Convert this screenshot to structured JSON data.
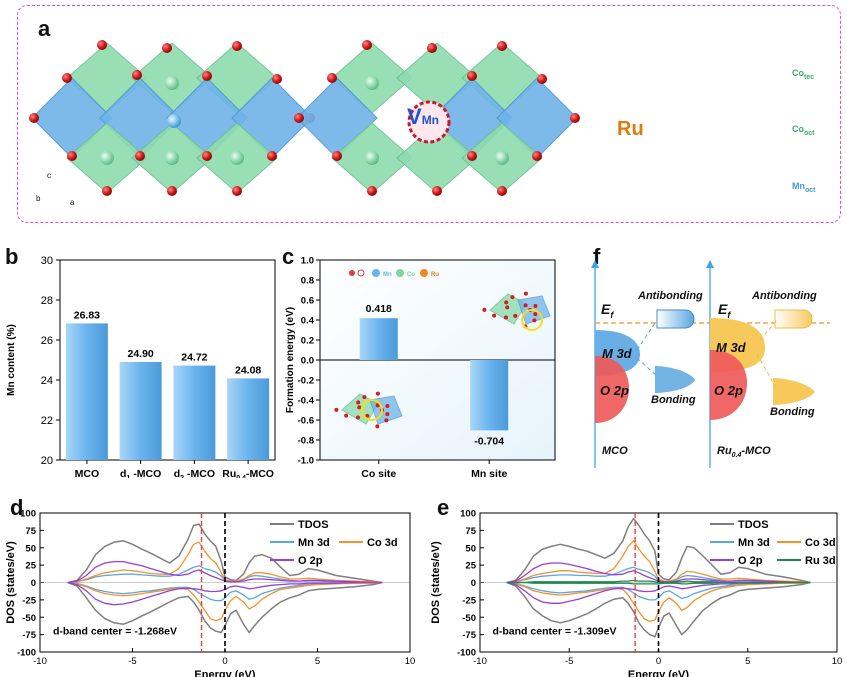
{
  "panel_a": {
    "label": "a",
    "vacancy_label": "V",
    "vacancy_sub": "Mn",
    "dopant_label": "Ru",
    "axes": {
      "c": "c",
      "b": "b",
      "a": "a"
    },
    "legend": [
      {
        "name": "Co",
        "sub": "tec",
        "color": "#5cc98a"
      },
      {
        "name": "Co",
        "sub": "oct",
        "color": "#5cc98a"
      },
      {
        "name": "Mn",
        "sub": "oct",
        "color": "#4aa3e0"
      }
    ],
    "colors": {
      "co_poly": "#88dba8",
      "mn_poly": "#6fb3e8",
      "oxygen": "#d81b1b",
      "ru_poly": "#f08a1c",
      "vacancy": "#d3122f"
    }
  },
  "chart_data": [
    {
      "id": "b",
      "type": "bar",
      "label": "b",
      "categories": [
        "MCO",
        "d1-MCO",
        "d2-MCO",
        "Ru0.4-MCO"
      ],
      "category_parts": [
        {
          "main": "MCO",
          "sub": "",
          "tail": ""
        },
        {
          "main": "d",
          "sub": "1",
          "tail": " -MCO"
        },
        {
          "main": "d",
          "sub": "2",
          "tail": " -MCO"
        },
        {
          "main": "Ru",
          "sub": "0.4",
          "tail": "-MCO"
        }
      ],
      "values": [
        26.83,
        24.9,
        24.72,
        24.08
      ],
      "value_labels": [
        "26.83",
        "24.90",
        "24.72",
        "24.08"
      ],
      "ylabel": "Mn content (%)",
      "ylim": [
        20,
        30
      ],
      "yticks": [
        20,
        22,
        24,
        26,
        28,
        30
      ],
      "color": "#6ab4ee"
    },
    {
      "id": "c",
      "type": "bar",
      "label": "c",
      "categories": [
        "Co site",
        "Mn site"
      ],
      "values": [
        0.418,
        -0.704
      ],
      "value_labels": [
        "0.418",
        "-0.704"
      ],
      "ylabel": "Formation energy (eV)",
      "ylim": [
        -1.0,
        1.0
      ],
      "yticks": [
        "-1.0",
        "-0.8",
        "-0.6",
        "-0.4",
        "-0.2",
        "0.0",
        "0.2",
        "0.4",
        "0.6",
        "0.8",
        "1.0"
      ],
      "legend": [
        {
          "name": "O",
          "color": "#e23b3b"
        },
        {
          "name": "Mn",
          "color": "#66b8ea"
        },
        {
          "name": "Co",
          "color": "#7ed6a2"
        },
        {
          "name": "Ru",
          "color": "#f08a1c"
        }
      ],
      "color": "#6ab4ee",
      "background": "#e6f4fb"
    },
    {
      "id": "d",
      "type": "line",
      "label": "d",
      "xlabel": "Energy (eV)",
      "ylabel": "DOS (states/eV)",
      "xlim": [
        -10,
        10
      ],
      "ylim": [
        -100,
        100
      ],
      "xticks": [
        -10,
        -5,
        0,
        5,
        10
      ],
      "yticks": [
        -100,
        -75,
        -50,
        -25,
        0,
        25,
        50,
        75,
        100
      ],
      "annotation": "d-band center = -1.268eV",
      "dband_center": -1.268,
      "fermi": 0,
      "x": [
        -8.5,
        -8,
        -7.5,
        -7,
        -6.5,
        -6,
        -5.5,
        -5,
        -4.5,
        -4,
        -3.5,
        -3,
        -2.5,
        -2,
        -1.7,
        -1.4,
        -1.1,
        -0.8,
        -0.5,
        -0.2,
        0,
        0.3,
        0.6,
        1,
        1.3,
        1.6,
        2,
        2.5,
        3,
        3.5,
        4,
        4.5,
        5,
        6,
        7,
        8,
        8.5
      ],
      "series": [
        {
          "name": "TDOS",
          "color": "#7f7f7f",
          "up": [
            0,
            3,
            18,
            40,
            52,
            58,
            60,
            55,
            48,
            42,
            35,
            28,
            38,
            62,
            82,
            84,
            70,
            60,
            52,
            30,
            8,
            4,
            3,
            12,
            28,
            38,
            40,
            35,
            22,
            10,
            12,
            20,
            18,
            10,
            6,
            2,
            0
          ],
          "down": [
            0,
            -5,
            -22,
            -40,
            -52,
            -58,
            -60,
            -55,
            -48,
            -42,
            -35,
            -28,
            -22,
            -20,
            -28,
            -40,
            -55,
            -65,
            -70,
            -72,
            -62,
            -45,
            -40,
            -60,
            -72,
            -62,
            -50,
            -38,
            -28,
            -22,
            -18,
            -12,
            -10,
            -8,
            -6,
            -3,
            0
          ]
        },
        {
          "name": "Mn 3d",
          "color": "#5aa7e0",
          "up": [
            0,
            1,
            4,
            8,
            10,
            11,
            12,
            12,
            11,
            10,
            9,
            9,
            12,
            18,
            22,
            24,
            20,
            18,
            15,
            9,
            3,
            2,
            2,
            4,
            8,
            10,
            9,
            7,
            5,
            3,
            2,
            2,
            2,
            1,
            1,
            0,
            0
          ],
          "down": [
            0,
            -1,
            -5,
            -10,
            -13,
            -15,
            -16,
            -15,
            -13,
            -12,
            -10,
            -8,
            -7,
            -7,
            -10,
            -15,
            -20,
            -24,
            -26,
            -26,
            -22,
            -14,
            -12,
            -18,
            -24,
            -22,
            -16,
            -12,
            -8,
            -6,
            -4,
            -3,
            -2,
            -1,
            -1,
            0,
            0
          ]
        },
        {
          "name": "Co 3d",
          "color": "#f4922c",
          "up": [
            0,
            1,
            5,
            10,
            14,
            16,
            18,
            17,
            15,
            13,
            12,
            12,
            20,
            40,
            55,
            58,
            45,
            35,
            28,
            14,
            4,
            2,
            2,
            5,
            10,
            14,
            14,
            12,
            8,
            5,
            5,
            6,
            5,
            3,
            2,
            1,
            0
          ],
          "down": [
            0,
            -2,
            -6,
            -12,
            -16,
            -18,
            -19,
            -18,
            -16,
            -14,
            -12,
            -10,
            -8,
            -10,
            -18,
            -28,
            -40,
            -52,
            -55,
            -52,
            -40,
            -26,
            -20,
            -28,
            -38,
            -34,
            -24,
            -16,
            -10,
            -8,
            -6,
            -4,
            -3,
            -2,
            -1,
            -1,
            0
          ]
        },
        {
          "name": "O 2p",
          "color": "#9a3fd6",
          "up": [
            0,
            2,
            10,
            22,
            28,
            30,
            30,
            27,
            24,
            20,
            16,
            12,
            10,
            12,
            16,
            18,
            14,
            10,
            7,
            4,
            2,
            1,
            1,
            2,
            4,
            5,
            5,
            4,
            3,
            2,
            2,
            3,
            3,
            2,
            1,
            0,
            0
          ],
          "down": [
            0,
            -3,
            -12,
            -24,
            -30,
            -32,
            -31,
            -28,
            -24,
            -20,
            -16,
            -12,
            -9,
            -8,
            -9,
            -10,
            -12,
            -13,
            -13,
            -12,
            -10,
            -6,
            -5,
            -7,
            -9,
            -8,
            -6,
            -4,
            -3,
            -2,
            -2,
            -1,
            -1,
            -1,
            0,
            0,
            0
          ]
        }
      ]
    },
    {
      "id": "e",
      "type": "line",
      "label": "e",
      "xlabel": "Energy (eV)",
      "ylabel": "DOS (states/eV)",
      "xlim": [
        -10,
        10
      ],
      "ylim": [
        -100,
        100
      ],
      "xticks": [
        -10,
        -5,
        0,
        5,
        10
      ],
      "yticks": [
        -100,
        -75,
        -50,
        -25,
        0,
        25,
        50,
        75,
        100
      ],
      "annotation": "d-band center = -1.309eV",
      "dband_center": -1.309,
      "fermi": 0,
      "x": [
        -8.5,
        -8,
        -7.5,
        -7,
        -6.5,
        -6,
        -5.5,
        -5,
        -4.5,
        -4,
        -3.5,
        -3,
        -2.5,
        -2,
        -1.7,
        -1.4,
        -1.1,
        -0.8,
        -0.5,
        -0.2,
        0,
        0.3,
        0.6,
        1,
        1.3,
        1.6,
        2,
        2.5,
        3,
        3.5,
        4,
        4.5,
        5,
        6,
        7,
        8,
        8.5
      ],
      "series": [
        {
          "name": "TDOS",
          "color": "#7f7f7f",
          "up": [
            0,
            3,
            18,
            38,
            48,
            52,
            55,
            52,
            48,
            45,
            40,
            35,
            42,
            60,
            80,
            92,
            82,
            70,
            60,
            45,
            12,
            5,
            4,
            15,
            35,
            52,
            50,
            38,
            25,
            12,
            14,
            22,
            20,
            12,
            8,
            3,
            0
          ],
          "down": [
            0,
            -5,
            -20,
            -38,
            -48,
            -55,
            -58,
            -55,
            -50,
            -45,
            -38,
            -30,
            -24,
            -22,
            -30,
            -42,
            -58,
            -68,
            -75,
            -78,
            -65,
            -48,
            -44,
            -62,
            -75,
            -68,
            -55,
            -40,
            -30,
            -22,
            -18,
            -12,
            -10,
            -8,
            -6,
            -3,
            0
          ]
        },
        {
          "name": "Mn 3d",
          "color": "#5aa7e0",
          "up": [
            0,
            1,
            4,
            7,
            9,
            10,
            11,
            11,
            10,
            10,
            9,
            9,
            12,
            17,
            20,
            22,
            19,
            17,
            14,
            9,
            3,
            2,
            2,
            4,
            8,
            10,
            9,
            7,
            5,
            3,
            2,
            2,
            2,
            1,
            1,
            0,
            0
          ],
          "down": [
            0,
            -1,
            -5,
            -9,
            -12,
            -14,
            -15,
            -14,
            -13,
            -12,
            -10,
            -8,
            -7,
            -7,
            -10,
            -15,
            -20,
            -23,
            -25,
            -25,
            -22,
            -14,
            -12,
            -18,
            -23,
            -21,
            -16,
            -12,
            -8,
            -6,
            -4,
            -3,
            -2,
            -1,
            -1,
            0,
            0
          ]
        },
        {
          "name": "Co 3d",
          "color": "#f4922c",
          "up": [
            0,
            1,
            5,
            10,
            13,
            15,
            17,
            17,
            15,
            14,
            13,
            13,
            20,
            38,
            52,
            60,
            48,
            38,
            30,
            16,
            5,
            2,
            2,
            5,
            12,
            16,
            15,
            12,
            8,
            5,
            5,
            6,
            5,
            3,
            2,
            1,
            0
          ],
          "down": [
            0,
            -2,
            -6,
            -12,
            -15,
            -17,
            -18,
            -17,
            -15,
            -14,
            -12,
            -10,
            -8,
            -10,
            -18,
            -30,
            -42,
            -52,
            -56,
            -54,
            -42,
            -28,
            -22,
            -30,
            -40,
            -36,
            -26,
            -18,
            -12,
            -8,
            -6,
            -4,
            -3,
            -2,
            -1,
            -1,
            0
          ]
        },
        {
          "name": "O 2p",
          "color": "#9a3fd6",
          "up": [
            0,
            2,
            10,
            20,
            26,
            28,
            28,
            26,
            23,
            20,
            16,
            13,
            11,
            12,
            15,
            17,
            14,
            10,
            7,
            4,
            2,
            1,
            1,
            2,
            4,
            5,
            5,
            4,
            3,
            2,
            2,
            3,
            3,
            2,
            1,
            0,
            0
          ],
          "down": [
            0,
            -3,
            -12,
            -22,
            -28,
            -30,
            -30,
            -27,
            -24,
            -20,
            -16,
            -12,
            -9,
            -8,
            -9,
            -10,
            -12,
            -13,
            -13,
            -12,
            -10,
            -6,
            -5,
            -7,
            -9,
            -8,
            -6,
            -4,
            -3,
            -2,
            -2,
            -1,
            -1,
            -1,
            0,
            0,
            0
          ]
        },
        {
          "name": "Ru 3d",
          "color": "#1f8a4c",
          "up": [
            0,
            0,
            0,
            1,
            1,
            1,
            1,
            1,
            1,
            1,
            1,
            1,
            1,
            2,
            2,
            3,
            2,
            2,
            2,
            1,
            0,
            0,
            0,
            1,
            1,
            2,
            1,
            1,
            1,
            0,
            0,
            0,
            0,
            0,
            0,
            0,
            0
          ],
          "down": [
            0,
            0,
            0,
            -1,
            -1,
            -1,
            -1,
            -1,
            -1,
            -1,
            -1,
            -1,
            -1,
            -1,
            -1,
            -2,
            -2,
            -2,
            -2,
            -2,
            -2,
            -1,
            -1,
            -1,
            -2,
            -2,
            -1,
            -1,
            -1,
            0,
            0,
            0,
            0,
            0,
            0,
            0,
            0
          ]
        }
      ]
    }
  ],
  "panel_f": {
    "label": "f",
    "ef_main": "E",
    "ef_sub": "f",
    "left": {
      "title": "MCO",
      "antibonding": "Antibonding",
      "bonding": "Bonding",
      "m3d": "M 3d",
      "o2p": "O 2p"
    },
    "right": {
      "title_main": "Ru",
      "title_sub": "0.4",
      "title_tail": "-MCO",
      "antibonding": "Antibonding",
      "bonding": "Bonding",
      "m3d": "M 3d",
      "o2p": "O 2p"
    },
    "colors": {
      "m3d_left": "#6aaee6",
      "m3d_right": "#f6c95a",
      "o2p": "#ee5a5a",
      "bands_left": "#5aa7e0",
      "bands_right": "#f6c95a",
      "fermi_line": "#f4922c",
      "axis": "#3fa7e0"
    }
  }
}
